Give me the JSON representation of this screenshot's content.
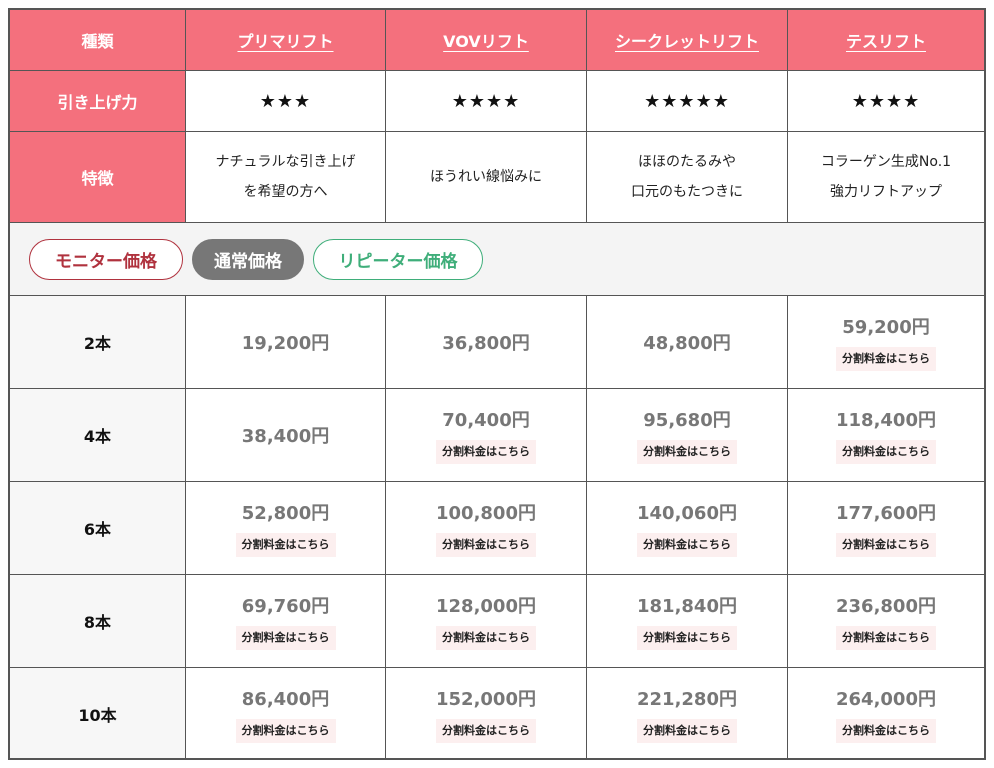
{
  "header": {
    "label": "種類",
    "products": [
      "プリマリフト",
      "VOVリフト",
      "シークレットリフト",
      "テスリフト"
    ]
  },
  "power": {
    "label": "引き上げ力",
    "stars": [
      "★★★",
      "★★★★",
      "★★★★★",
      "★★★★"
    ]
  },
  "features": {
    "label": "特徴",
    "items": [
      [
        "ナチュラルな引き上げ",
        "を希望の方へ"
      ],
      [
        "ほうれい線悩みに"
      ],
      [
        "ほほのたるみや",
        "口元のもたつきに"
      ],
      [
        "コラーゲン生成No.1",
        "強力リフトアップ"
      ]
    ]
  },
  "price_tabs": {
    "items": [
      "モニター価格",
      "通常価格",
      "リピーター価格"
    ],
    "selected": "通常価格"
  },
  "split_link_label": "分割料金はこちら",
  "price_rows": [
    {
      "label": "2本",
      "prices": [
        "19,200円",
        "36,800円",
        "48,800円",
        "59,200円"
      ],
      "split": [
        false,
        false,
        false,
        true
      ]
    },
    {
      "label": "4本",
      "prices": [
        "38,400円",
        "70,400円",
        "95,680円",
        "118,400円"
      ],
      "split": [
        false,
        true,
        true,
        true
      ]
    },
    {
      "label": "6本",
      "prices": [
        "52,800円",
        "100,800円",
        "140,060円",
        "177,600円"
      ],
      "split": [
        true,
        true,
        true,
        true
      ]
    },
    {
      "label": "8本",
      "prices": [
        "69,760円",
        "128,000円",
        "181,840円",
        "236,800円"
      ],
      "split": [
        true,
        true,
        true,
        true
      ]
    },
    {
      "label": "10本",
      "prices": [
        "86,400円",
        "152,000円",
        "221,280円",
        "264,000円"
      ],
      "split": [
        true,
        true,
        true,
        true
      ]
    }
  ],
  "colors": {
    "header_pink": "#f4707d",
    "monitor": "#b0323e",
    "normal_selected": "#777777",
    "repeater": "#3fae7a",
    "split_bg": "#fcefef",
    "price_text": "#777777"
  }
}
